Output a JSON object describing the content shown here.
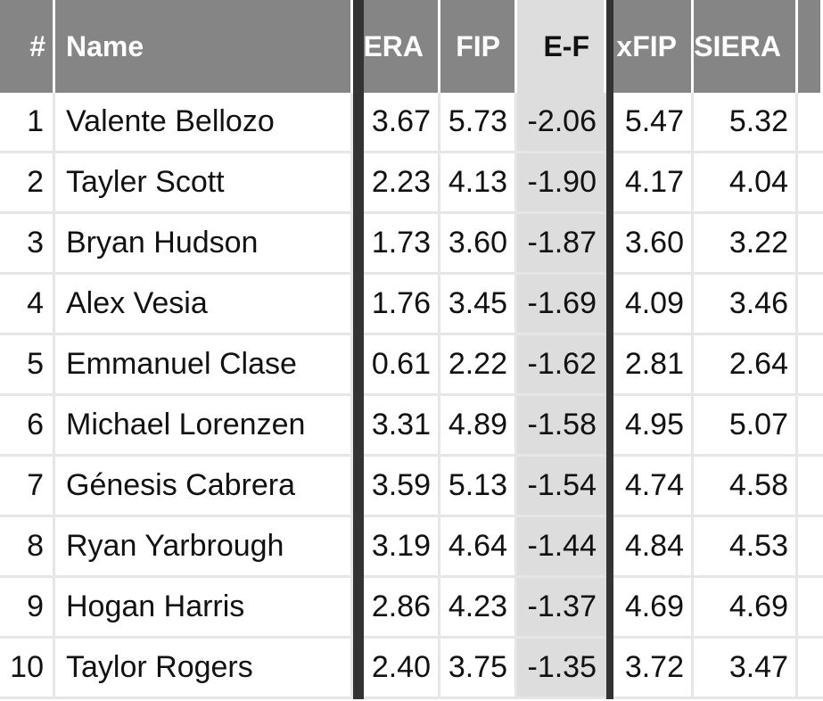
{
  "chart_data": {
    "type": "table",
    "columns": [
      "#",
      "Name",
      "ERA",
      "FIP",
      "E-F",
      "xFIP",
      "SIERA"
    ],
    "highlight_column": "E-F",
    "colors": {
      "header_bg": "#858585",
      "highlight_bg": "#dddddd",
      "separator": "#333333"
    },
    "rows": [
      {
        "rank": "1",
        "name": "Valente Bellozo",
        "era": "3.67",
        "fip": "5.73",
        "ef": "-2.06",
        "xfip": "5.47",
        "siera": "5.32"
      },
      {
        "rank": "2",
        "name": "Tayler Scott",
        "era": "2.23",
        "fip": "4.13",
        "ef": "-1.90",
        "xfip": "4.17",
        "siera": "4.04"
      },
      {
        "rank": "3",
        "name": "Bryan Hudson",
        "era": "1.73",
        "fip": "3.60",
        "ef": "-1.87",
        "xfip": "3.60",
        "siera": "3.22"
      },
      {
        "rank": "4",
        "name": "Alex Vesia",
        "era": "1.76",
        "fip": "3.45",
        "ef": "-1.69",
        "xfip": "4.09",
        "siera": "3.46"
      },
      {
        "rank": "5",
        "name": "Emmanuel Clase",
        "era": "0.61",
        "fip": "2.22",
        "ef": "-1.62",
        "xfip": "2.81",
        "siera": "2.64"
      },
      {
        "rank": "6",
        "name": "Michael Lorenzen",
        "era": "3.31",
        "fip": "4.89",
        "ef": "-1.58",
        "xfip": "4.95",
        "siera": "5.07"
      },
      {
        "rank": "7",
        "name": "Génesis Cabrera",
        "era": "3.59",
        "fip": "5.13",
        "ef": "-1.54",
        "xfip": "4.74",
        "siera": "4.58"
      },
      {
        "rank": "8",
        "name": "Ryan Yarbrough",
        "era": "3.19",
        "fip": "4.64",
        "ef": "-1.44",
        "xfip": "4.84",
        "siera": "4.53"
      },
      {
        "rank": "9",
        "name": "Hogan Harris",
        "era": "2.86",
        "fip": "4.23",
        "ef": "-1.37",
        "xfip": "4.69",
        "siera": "4.69"
      },
      {
        "rank": "10",
        "name": "Taylor Rogers",
        "era": "2.40",
        "fip": "3.75",
        "ef": "-1.35",
        "xfip": "3.72",
        "siera": "3.47"
      }
    ]
  }
}
